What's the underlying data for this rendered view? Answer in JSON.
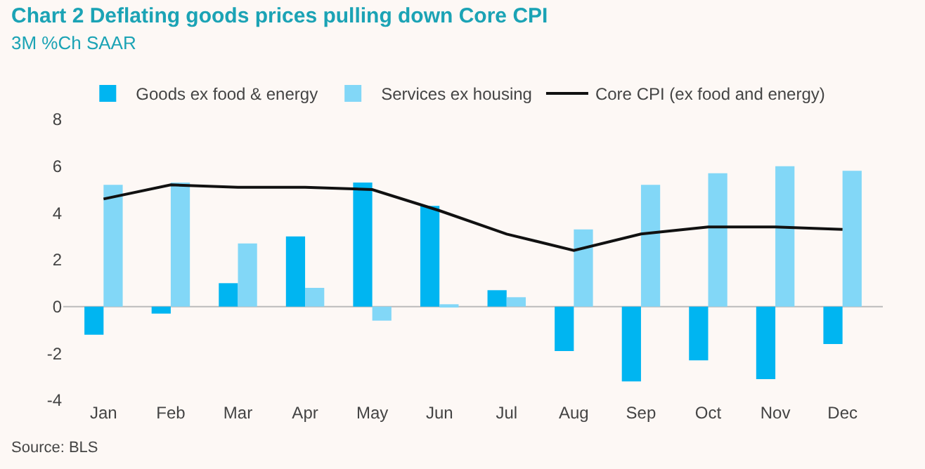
{
  "chart_data": {
    "type": "bar",
    "title": "Chart 2 Deflating goods prices pulling down Core CPI",
    "subtitle": "3M %Ch SAAR",
    "categories": [
      "Jan",
      "Feb",
      "Mar",
      "Apr",
      "May",
      "Jun",
      "Jul",
      "Aug",
      "Sep",
      "Oct",
      "Nov",
      "Dec"
    ],
    "series": [
      {
        "name": "Goods ex food & energy",
        "color": "#00b5f1",
        "values": [
          -1.2,
          -0.3,
          1.0,
          3.0,
          5.3,
          4.3,
          0.7,
          -1.9,
          -3.2,
          -2.3,
          -3.1,
          -1.6
        ]
      },
      {
        "name": "Services ex housing",
        "color": "#82d7f7",
        "values": [
          5.2,
          5.3,
          2.7,
          0.8,
          -0.6,
          0.1,
          0.4,
          3.3,
          5.2,
          5.7,
          6.0,
          5.8
        ]
      },
      {
        "name": "Core CPI (ex food and energy)",
        "type": "line",
        "color": "#111111",
        "values": [
          4.6,
          5.2,
          5.1,
          5.1,
          5.0,
          4.1,
          3.1,
          2.4,
          3.1,
          3.4,
          3.4,
          3.3
        ]
      }
    ],
    "ylim": [
      -4,
      8
    ],
    "ref_lines": [
      {
        "axis": "y",
        "value": 0,
        "color": "#bbbbbb"
      }
    ],
    "yticks": [
      -4,
      -2,
      0,
      2,
      4,
      6,
      8
    ],
    "grid": false,
    "legend": "top",
    "marker": "none",
    "annotations": [
      "Source: BLS"
    ]
  }
}
